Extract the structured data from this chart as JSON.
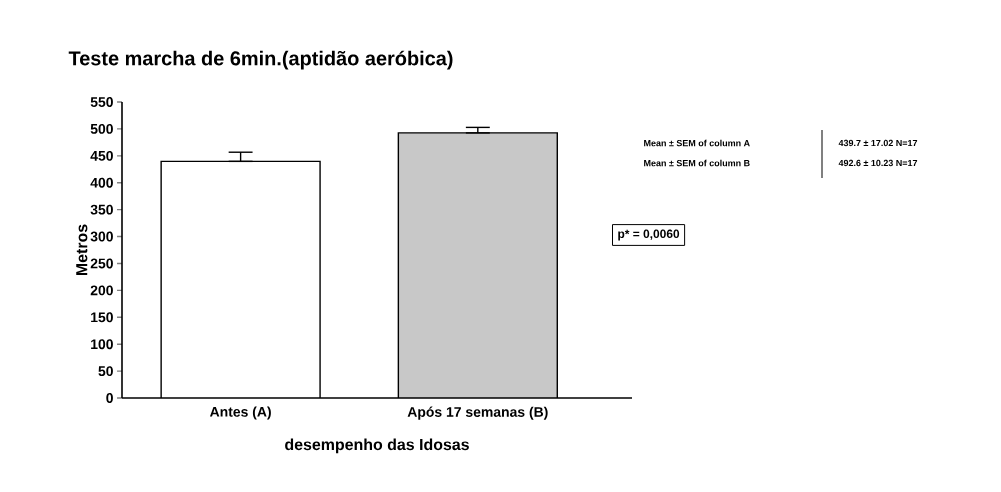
{
  "chart_data": {
    "type": "bar",
    "title": "Teste marcha de 6min.(aptidão aeróbica)",
    "xlabel": "desempenho das Idosas",
    "ylabel": "Metros",
    "categories": [
      "Antes (A)",
      "Após 17 semanas (B)"
    ],
    "values": [
      439.7,
      492.6
    ],
    "colors": [
      "#ffffff",
      "#c8c8c8"
    ],
    "errors": [
      [
        439.7,
        456.72
      ],
      [
        492.6,
        502.83
      ]
    ],
    "ylim": [
      0,
      550
    ],
    "yticks": [
      0,
      50,
      100,
      150,
      200,
      250,
      300,
      350,
      400,
      450,
      500,
      550
    ],
    "grid": false,
    "annotations": [
      "Mean ± SEM of column A",
      "439.7 ± 17.02 N=17",
      "Mean ± SEM of column B",
      "492.6 ± 10.23 N=17",
      "p* = 0,0060"
    ]
  }
}
